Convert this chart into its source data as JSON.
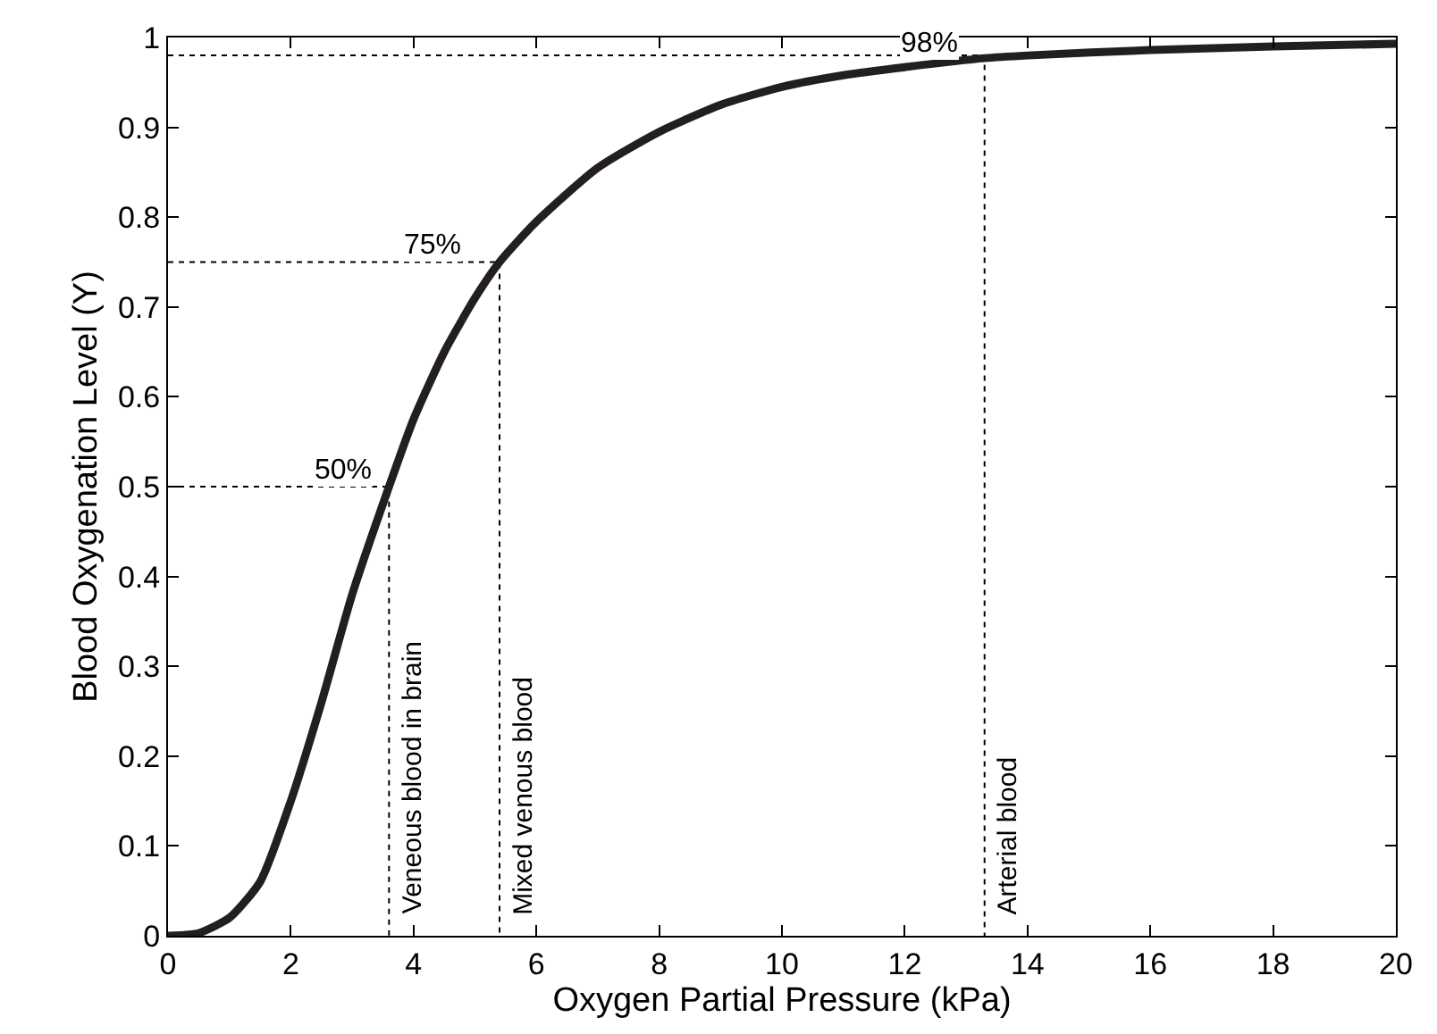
{
  "chart_data": {
    "type": "line",
    "xlabel": "Oxygen Partial Pressure (kPa)",
    "ylabel": "Blood Oxygenation Level (Y)",
    "xlim": [
      0,
      20
    ],
    "xticks": [
      0,
      2,
      4,
      6,
      8,
      10,
      12,
      14,
      16,
      18,
      20
    ],
    "ylim": [
      0,
      1
    ],
    "yticks": [
      0,
      0.1,
      0.2,
      0.3,
      0.4,
      0.5,
      0.6,
      0.7,
      0.8,
      0.9,
      1
    ],
    "series": [
      {
        "line_style": "dotted",
        "color": "#000000",
        "x": [
          0,
          3.6,
          3.6
        ],
        "values": [
          0.5,
          0.5,
          0
        ]
      },
      {
        "line_style": "dotted",
        "color": "#000000",
        "x": [
          0,
          5.4,
          5.4
        ],
        "values": [
          0.75,
          0.75,
          0
        ]
      },
      {
        "line_style": "dotted",
        "color": "#000000",
        "x": [
          0,
          13.3,
          13.3
        ],
        "values": [
          0.98,
          0.98,
          0
        ]
      },
      {
        "line_style": "solid",
        "color": "#231f20",
        "x": [
          0,
          0.5,
          1,
          1.5,
          2,
          2.5,
          3,
          3.6,
          4,
          4.5,
          5,
          5.4,
          6,
          7,
          8,
          9,
          10,
          11,
          12,
          13.3,
          14,
          16,
          18,
          20
        ],
        "values": [
          0,
          0.003,
          0.02,
          0.06,
          0.15,
          0.26,
          0.38,
          0.5,
          0.575,
          0.65,
          0.71,
          0.75,
          0.795,
          0.855,
          0.895,
          0.925,
          0.945,
          0.958,
          0.967,
          0.977,
          0.98,
          0.986,
          0.99,
          0.993
        ]
      }
    ],
    "annotations": [
      {
        "text": "50%",
        "x": 2.85,
        "y": 0.5
      },
      {
        "text": "75%",
        "x": 4.3,
        "y": 0.75
      },
      {
        "text": "98%",
        "x": 12.4,
        "y": 0.975
      },
      {
        "text": "Veneous blood in brain",
        "x": 3.6,
        "y": 0.02
      },
      {
        "text": "Mixed venous blood",
        "x": 5.4,
        "y": 0.02
      },
      {
        "text": "Arterial blood",
        "x": 13.3,
        "y": 0.02
      }
    ]
  }
}
